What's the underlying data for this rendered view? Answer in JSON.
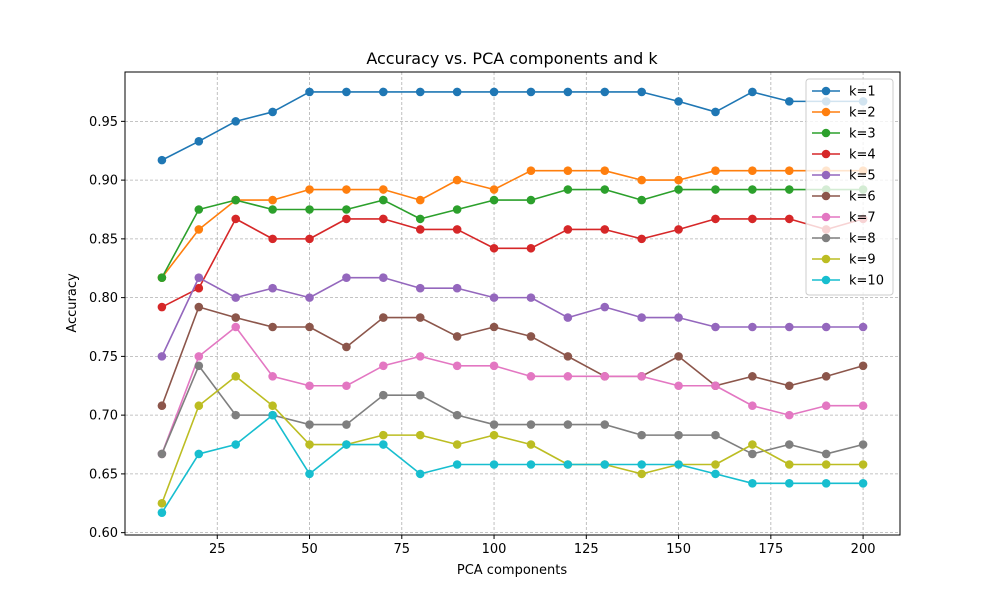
{
  "chart_data": {
    "type": "line",
    "title": "Accuracy vs. PCA components and k",
    "xlabel": "PCA components",
    "ylabel": "Accuracy",
    "xlim": [
      0,
      210
    ],
    "ylim": [
      0.598,
      0.992
    ],
    "xticks": [
      25,
      50,
      75,
      100,
      125,
      150,
      175,
      200
    ],
    "yticks": [
      0.6,
      0.65,
      0.7,
      0.75,
      0.8,
      0.85,
      0.9,
      0.95
    ],
    "grid": true,
    "legend_position": "top-right",
    "x": [
      10,
      20,
      30,
      40,
      50,
      60,
      70,
      80,
      90,
      100,
      110,
      120,
      130,
      140,
      150,
      160,
      170,
      180,
      190,
      200
    ],
    "series": [
      {
        "name": "k=1",
        "color": "#1f77b4",
        "values": [
          0.917,
          0.933,
          0.95,
          0.958,
          0.975,
          0.975,
          0.975,
          0.975,
          0.975,
          0.975,
          0.975,
          0.975,
          0.975,
          0.975,
          0.967,
          0.958,
          0.975,
          0.967,
          0.967,
          0.967
        ]
      },
      {
        "name": "k=2",
        "color": "#ff7f0e",
        "values": [
          0.817,
          0.858,
          0.883,
          0.883,
          0.892,
          0.892,
          0.892,
          0.883,
          0.9,
          0.892,
          0.908,
          0.908,
          0.908,
          0.9,
          0.9,
          0.908,
          0.908,
          0.908,
          0.908,
          0.908
        ]
      },
      {
        "name": "k=3",
        "color": "#2ca02c",
        "values": [
          0.817,
          0.875,
          0.883,
          0.875,
          0.875,
          0.875,
          0.883,
          0.867,
          0.875,
          0.883,
          0.883,
          0.892,
          0.892,
          0.883,
          0.892,
          0.892,
          0.892,
          0.892,
          0.892,
          0.892
        ]
      },
      {
        "name": "k=4",
        "color": "#d62728",
        "values": [
          0.792,
          0.808,
          0.867,
          0.85,
          0.85,
          0.867,
          0.867,
          0.858,
          0.858,
          0.842,
          0.842,
          0.858,
          0.858,
          0.85,
          0.858,
          0.867,
          0.867,
          0.867,
          0.858,
          0.867
        ]
      },
      {
        "name": "k=5",
        "color": "#9467bd",
        "values": [
          0.75,
          0.817,
          0.8,
          0.808,
          0.8,
          0.817,
          0.817,
          0.808,
          0.808,
          0.8,
          0.8,
          0.783,
          0.792,
          0.783,
          0.783,
          0.775,
          0.775,
          0.775,
          0.775,
          0.775
        ]
      },
      {
        "name": "k=6",
        "color": "#8c564b",
        "values": [
          0.708,
          0.792,
          0.783,
          0.775,
          0.775,
          0.758,
          0.783,
          0.783,
          0.767,
          0.775,
          0.767,
          0.75,
          0.733,
          0.733,
          0.75,
          0.725,
          0.733,
          0.725,
          0.733,
          0.742
        ]
      },
      {
        "name": "k=7",
        "color": "#e377c2",
        "values": [
          0.667,
          0.75,
          0.775,
          0.733,
          0.725,
          0.725,
          0.742,
          0.75,
          0.742,
          0.742,
          0.733,
          0.733,
          0.733,
          0.733,
          0.725,
          0.725,
          0.708,
          0.7,
          0.708,
          0.708
        ]
      },
      {
        "name": "k=8",
        "color": "#7f7f7f",
        "values": [
          0.667,
          0.742,
          0.7,
          0.7,
          0.692,
          0.692,
          0.717,
          0.717,
          0.7,
          0.692,
          0.692,
          0.692,
          0.692,
          0.683,
          0.683,
          0.683,
          0.667,
          0.675,
          0.667,
          0.675
        ]
      },
      {
        "name": "k=9",
        "color": "#bcbd22",
        "values": [
          0.625,
          0.708,
          0.733,
          0.708,
          0.675,
          0.675,
          0.683,
          0.683,
          0.675,
          0.683,
          0.675,
          0.658,
          0.658,
          0.65,
          0.658,
          0.658,
          0.675,
          0.658,
          0.658,
          0.658
        ]
      },
      {
        "name": "k=10",
        "color": "#17becf",
        "values": [
          0.617,
          0.667,
          0.675,
          0.7,
          0.65,
          0.675,
          0.675,
          0.65,
          0.658,
          0.658,
          0.658,
          0.658,
          0.658,
          0.658,
          0.658,
          0.65,
          0.642,
          0.642,
          0.642,
          0.642
        ]
      }
    ]
  }
}
